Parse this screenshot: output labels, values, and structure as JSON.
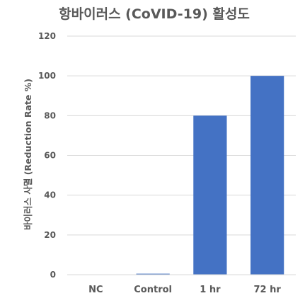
{
  "chart_data": {
    "type": "bar",
    "title": "항바이러스 (CoVID-19) 활성도",
    "xlabel": "",
    "ylabel": "바이러스 사멸 (Reduction Rate %)",
    "categories": [
      "NC",
      "Control",
      "1 hr",
      "72 hr"
    ],
    "values": [
      0,
      0.5,
      80,
      100
    ],
    "ylim": [
      0,
      120
    ],
    "yticks": [
      0,
      20,
      40,
      60,
      80,
      100,
      120
    ],
    "grid": true,
    "legend": "none",
    "colors": {
      "bar": "#4472c4",
      "grid": "#d9d9d9",
      "text": "#595959"
    }
  }
}
